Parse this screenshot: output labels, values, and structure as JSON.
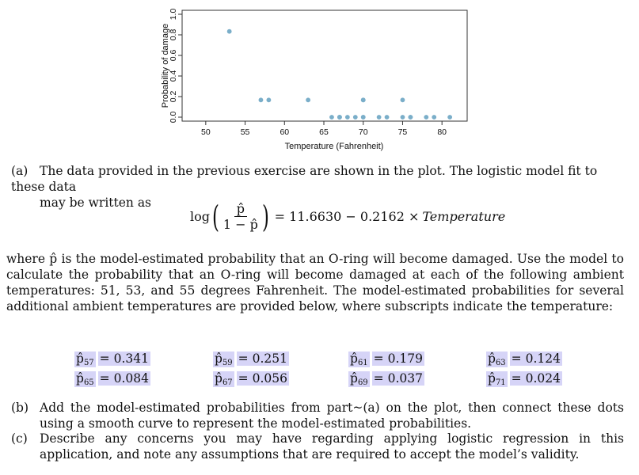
{
  "chart_data": {
    "type": "scatter",
    "xlabel": "Temperature (Fahrenheit)",
    "ylabel": "Probability of damage",
    "xlim": [
      47,
      83.2
    ],
    "ylim": [
      0,
      1
    ],
    "xticks": [
      50,
      55,
      60,
      65,
      70,
      75,
      80
    ],
    "yticks": [
      0.0,
      0.2,
      0.4,
      0.6,
      0.8,
      1.0
    ],
    "ytick_labels": [
      "0.0",
      "0.2",
      "0.4",
      "0.6",
      "0.8",
      "1.0"
    ],
    "marker_color": "#7aaec9",
    "points": [
      {
        "x": 53,
        "y": 0.833
      },
      {
        "x": 57,
        "y": 0.167
      },
      {
        "x": 58,
        "y": 0.167
      },
      {
        "x": 63,
        "y": 0.167
      },
      {
        "x": 66,
        "y": 0
      },
      {
        "x": 67,
        "y": 0
      },
      {
        "x": 67,
        "y": 0
      },
      {
        "x": 67,
        "y": 0
      },
      {
        "x": 68,
        "y": 0
      },
      {
        "x": 69,
        "y": 0
      },
      {
        "x": 70,
        "y": 0
      },
      {
        "x": 70,
        "y": 0
      },
      {
        "x": 70,
        "y": 0.167
      },
      {
        "x": 70,
        "y": 0.167
      },
      {
        "x": 72,
        "y": 0
      },
      {
        "x": 73,
        "y": 0
      },
      {
        "x": 75,
        "y": 0
      },
      {
        "x": 75,
        "y": 0.167
      },
      {
        "x": 76,
        "y": 0
      },
      {
        "x": 76,
        "y": 0
      },
      {
        "x": 78,
        "y": 0
      },
      {
        "x": 79,
        "y": 0
      },
      {
        "x": 81,
        "y": 0
      }
    ]
  },
  "text": {
    "a_label": "(a)",
    "a_line1": "The data provided in the previous exercise are shown in the plot. The logistic model fit to these data",
    "a_line2": "may be written as",
    "eq_log": "log",
    "eq_num": "p̂",
    "eq_den": "1 − p̂",
    "eq_rhs": "= 11.6630 − 0.2162 × ",
    "eq_var": "Temperature",
    "para": "where p̂ is the model-estimated probability that an O-ring will become damaged. Use the model to calculate the probability that an O-ring will become damaged at each of the following ambient temperatures: 51, 53, and 55 degrees Fahrenheit. The model-estimated probabilities for several additional ambient temperatures are provided below, where subscripts indicate the temperature:",
    "b_label": "(b)",
    "b_text": "Add the model-estimated probabilities from part~(a) on the plot, then connect these dots using a smooth curve to represent the model-estimated probabilities.",
    "c_label": "(c)",
    "c_text": "Describe any concerns you may have regarding applying logistic regression in this application, and note any assumptions that are required to accept the model’s validity."
  },
  "probs": [
    {
      "p": "p̂",
      "sub": "57",
      "val": "= 0.341"
    },
    {
      "p": "p̂",
      "sub": "59",
      "val": "= 0.251"
    },
    {
      "p": "p̂",
      "sub": "61",
      "val": "= 0.179"
    },
    {
      "p": "p̂",
      "sub": "63",
      "val": "= 0.124"
    },
    {
      "p": "p̂",
      "sub": "65",
      "val": "= 0.084"
    },
    {
      "p": "p̂",
      "sub": "67",
      "val": "= 0.056"
    },
    {
      "p": "p̂",
      "sub": "69",
      "val": "= 0.037"
    },
    {
      "p": "p̂",
      "sub": "71",
      "val": "= 0.024"
    }
  ]
}
